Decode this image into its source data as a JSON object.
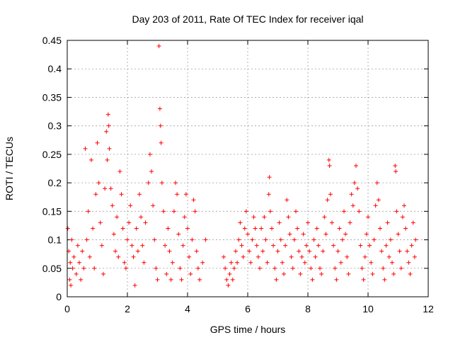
{
  "chart_data": {
    "type": "scatter",
    "title": "Day 203 of 2011, Rate Of TEC Index for receiver iqal",
    "xlabel": "GPS time / hours",
    "ylabel": "ROTI / TECUs",
    "xlim": [
      0,
      12
    ],
    "ylim": [
      0,
      0.45
    ],
    "xticks": [
      "0",
      "2",
      "4",
      "6",
      "8",
      "10",
      "12"
    ],
    "yticks": [
      "0",
      "0.05",
      "0.1",
      "0.15",
      "0.2",
      "0.25",
      "0.3",
      "0.35",
      "0.4",
      "0.45"
    ],
    "grid": true,
    "marker": "+",
    "color": "#ff0000",
    "series": [
      {
        "points": [
          [
            0.02,
            0.12
          ],
          [
            0.05,
            0.08
          ],
          [
            0.08,
            0.03
          ],
          [
            0.1,
            0.06
          ],
          [
            0.12,
            0.02
          ],
          [
            0.15,
            0.1
          ],
          [
            0.18,
            0.05
          ],
          [
            0.22,
            0.07
          ],
          [
            0.3,
            0.04
          ],
          [
            0.35,
            0.09
          ],
          [
            0.4,
            0.06
          ],
          [
            0.45,
            0.03
          ],
          [
            0.5,
            0.08
          ],
          [
            0.55,
            0.05
          ],
          [
            0.6,
            0.26
          ],
          [
            0.65,
            0.1
          ],
          [
            0.7,
            0.15
          ],
          [
            0.75,
            0.07
          ],
          [
            0.8,
            0.24
          ],
          [
            0.85,
            0.12
          ],
          [
            0.9,
            0.05
          ],
          [
            0.95,
            0.18
          ],
          [
            1.0,
            0.27
          ],
          [
            1.05,
            0.2
          ],
          [
            1.1,
            0.13
          ],
          [
            1.15,
            0.09
          ],
          [
            1.2,
            0.04
          ],
          [
            1.25,
            0.19
          ],
          [
            1.3,
            0.29
          ],
          [
            1.33,
            0.24
          ],
          [
            1.36,
            0.32
          ],
          [
            1.38,
            0.3
          ],
          [
            1.4,
            0.26
          ],
          [
            1.45,
            0.19
          ],
          [
            1.5,
            0.16
          ],
          [
            1.55,
            0.11
          ],
          [
            1.6,
            0.08
          ],
          [
            1.65,
            0.14
          ],
          [
            1.7,
            0.07
          ],
          [
            1.75,
            0.22
          ],
          [
            1.8,
            0.18
          ],
          [
            1.85,
            0.12
          ],
          [
            1.9,
            0.06
          ],
          [
            1.95,
            0.05
          ],
          [
            2.0,
            0.1
          ],
          [
            2.05,
            0.13
          ],
          [
            2.1,
            0.16
          ],
          [
            2.15,
            0.09
          ],
          [
            2.2,
            0.07
          ],
          [
            2.25,
            0.02
          ],
          [
            2.3,
            0.12
          ],
          [
            2.35,
            0.08
          ],
          [
            2.4,
            0.18
          ],
          [
            2.45,
            0.14
          ],
          [
            2.5,
            0.09
          ],
          [
            2.55,
            0.06
          ],
          [
            2.6,
            0.13
          ],
          [
            2.7,
            0.2
          ],
          [
            2.75,
            0.25
          ],
          [
            2.8,
            0.22
          ],
          [
            2.85,
            0.16
          ],
          [
            2.9,
            0.1
          ],
          [
            2.95,
            0.05
          ],
          [
            3.0,
            0.03
          ],
          [
            3.05,
            0.44
          ],
          [
            3.08,
            0.33
          ],
          [
            3.1,
            0.3
          ],
          [
            3.12,
            0.27
          ],
          [
            3.15,
            0.2
          ],
          [
            3.2,
            0.15
          ],
          [
            3.25,
            0.09
          ],
          [
            3.3,
            0.04
          ],
          [
            3.35,
            0.12
          ],
          [
            3.4,
            0.08
          ],
          [
            3.45,
            0.03
          ],
          [
            3.5,
            0.06
          ],
          [
            3.55,
            0.15
          ],
          [
            3.6,
            0.2
          ],
          [
            3.65,
            0.18
          ],
          [
            3.7,
            0.11
          ],
          [
            3.75,
            0.05
          ],
          [
            3.8,
            0.03
          ],
          [
            3.85,
            0.09
          ],
          [
            3.9,
            0.14
          ],
          [
            3.95,
            0.18
          ],
          [
            4.0,
            0.12
          ],
          [
            4.05,
            0.07
          ],
          [
            4.1,
            0.04
          ],
          [
            4.15,
            0.1
          ],
          [
            4.2,
            0.17
          ],
          [
            4.25,
            0.15
          ],
          [
            4.3,
            0.08
          ],
          [
            4.35,
            0.05
          ],
          [
            4.4,
            0.03
          ],
          [
            4.5,
            0.06
          ],
          [
            4.6,
            0.1
          ],
          [
            5.2,
            0.07
          ],
          [
            5.25,
            0.05
          ],
          [
            5.3,
            0.03
          ],
          [
            5.35,
            0.02
          ],
          [
            5.4,
            0.04
          ],
          [
            5.45,
            0.06
          ],
          [
            5.5,
            0.03
          ],
          [
            5.55,
            0.05
          ],
          [
            5.6,
            0.08
          ],
          [
            5.65,
            0.06
          ],
          [
            5.7,
            0.1
          ],
          [
            5.75,
            0.13
          ],
          [
            5.8,
            0.09
          ],
          [
            5.85,
            0.07
          ],
          [
            5.9,
            0.12
          ],
          [
            5.95,
            0.15
          ],
          [
            6.0,
            0.11
          ],
          [
            6.05,
            0.08
          ],
          [
            6.1,
            0.06
          ],
          [
            6.15,
            0.1
          ],
          [
            6.2,
            0.14
          ],
          [
            6.25,
            0.12
          ],
          [
            6.3,
            0.09
          ],
          [
            6.35,
            0.07
          ],
          [
            6.4,
            0.05
          ],
          [
            6.45,
            0.12
          ],
          [
            6.5,
            0.08
          ],
          [
            6.55,
            0.14
          ],
          [
            6.6,
            0.1
          ],
          [
            6.65,
            0.06
          ],
          [
            6.7,
            0.18
          ],
          [
            6.72,
            0.21
          ],
          [
            6.75,
            0.15
          ],
          [
            6.8,
            0.12
          ],
          [
            6.85,
            0.09
          ],
          [
            6.9,
            0.05
          ],
          [
            6.95,
            0.03
          ],
          [
            7.0,
            0.08
          ],
          [
            7.05,
            0.13
          ],
          [
            7.1,
            0.1
          ],
          [
            7.15,
            0.06
          ],
          [
            7.2,
            0.04
          ],
          [
            7.25,
            0.09
          ],
          [
            7.3,
            0.17
          ],
          [
            7.35,
            0.14
          ],
          [
            7.4,
            0.11
          ],
          [
            7.45,
            0.07
          ],
          [
            7.5,
            0.05
          ],
          [
            7.55,
            0.1
          ],
          [
            7.6,
            0.15
          ],
          [
            7.65,
            0.12
          ],
          [
            7.7,
            0.08
          ],
          [
            7.75,
            0.04
          ],
          [
            7.8,
            0.07
          ],
          [
            7.85,
            0.11
          ],
          [
            7.9,
            0.06
          ],
          [
            7.95,
            0.09
          ],
          [
            8.0,
            0.13
          ],
          [
            8.05,
            0.08
          ],
          [
            8.1,
            0.05
          ],
          [
            8.15,
            0.03
          ],
          [
            8.2,
            0.1
          ],
          [
            8.25,
            0.07
          ],
          [
            8.3,
            0.12
          ],
          [
            8.35,
            0.09
          ],
          [
            8.4,
            0.05
          ],
          [
            8.45,
            0.04
          ],
          [
            8.5,
            0.08
          ],
          [
            8.55,
            0.14
          ],
          [
            8.6,
            0.11
          ],
          [
            8.65,
            0.17
          ],
          [
            8.7,
            0.24
          ],
          [
            8.72,
            0.23
          ],
          [
            8.75,
            0.18
          ],
          [
            8.8,
            0.13
          ],
          [
            8.85,
            0.09
          ],
          [
            8.9,
            0.05
          ],
          [
            8.95,
            0.03
          ],
          [
            9.0,
            0.08
          ],
          [
            9.05,
            0.12
          ],
          [
            9.1,
            0.06
          ],
          [
            9.15,
            0.1
          ],
          [
            9.2,
            0.15
          ],
          [
            9.25,
            0.11
          ],
          [
            9.3,
            0.07
          ],
          [
            9.35,
            0.04
          ],
          [
            9.4,
            0.13
          ],
          [
            9.45,
            0.18
          ],
          [
            9.5,
            0.16
          ],
          [
            9.55,
            0.2
          ],
          [
            9.6,
            0.23
          ],
          [
            9.65,
            0.19
          ],
          [
            9.7,
            0.15
          ],
          [
            9.75,
            0.09
          ],
          [
            9.8,
            0.05
          ],
          [
            9.85,
            0.03
          ],
          [
            9.9,
            0.07
          ],
          [
            9.95,
            0.11
          ],
          [
            10.0,
            0.14
          ],
          [
            10.05,
            0.09
          ],
          [
            10.1,
            0.06
          ],
          [
            10.15,
            0.04
          ],
          [
            10.2,
            0.1
          ],
          [
            10.25,
            0.16
          ],
          [
            10.3,
            0.2
          ],
          [
            10.35,
            0.17
          ],
          [
            10.4,
            0.12
          ],
          [
            10.45,
            0.08
          ],
          [
            10.5,
            0.05
          ],
          [
            10.55,
            0.03
          ],
          [
            10.6,
            0.09
          ],
          [
            10.65,
            0.13
          ],
          [
            10.7,
            0.07
          ],
          [
            10.75,
            0.1
          ],
          [
            10.8,
            0.06
          ],
          [
            10.85,
            0.04
          ],
          [
            10.9,
            0.23
          ],
          [
            10.92,
            0.22
          ],
          [
            10.95,
            0.15
          ],
          [
            11.0,
            0.11
          ],
          [
            11.05,
            0.08
          ],
          [
            11.1,
            0.05
          ],
          [
            11.15,
            0.14
          ],
          [
            11.2,
            0.16
          ],
          [
            11.25,
            0.12
          ],
          [
            11.3,
            0.08
          ],
          [
            11.35,
            0.06
          ],
          [
            11.4,
            0.04
          ],
          [
            11.45,
            0.09
          ],
          [
            11.5,
            0.13
          ],
          [
            11.55,
            0.07
          ],
          [
            11.58,
            0.1
          ]
        ]
      }
    ]
  }
}
